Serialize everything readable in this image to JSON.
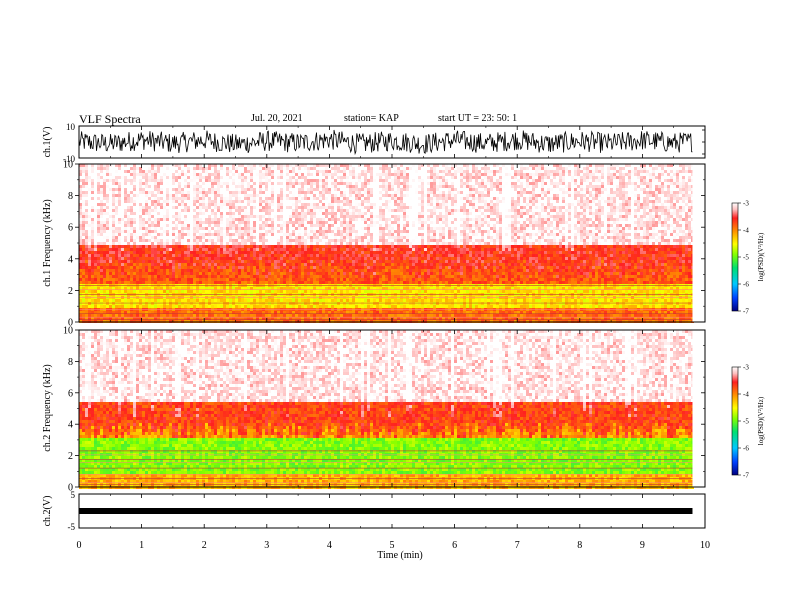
{
  "header": {
    "title": "VLF Spectra",
    "date": "Jul. 20, 2021",
    "station": "station= KAP",
    "start": "start UT = 23: 50: 1"
  },
  "chart_data": [
    {
      "type": "line",
      "panel": "waveform-ch1",
      "ylabel": "ch.1(V)",
      "ylim": [
        -10,
        10
      ],
      "ytick_labels": [
        "-10",
        "10"
      ],
      "x": [
        0.0,
        0.5,
        1.0,
        1.5,
        2.0,
        2.5,
        3.0,
        3.5,
        4.0,
        4.5,
        5.0,
        5.5,
        6.0,
        6.5,
        7.0,
        7.5,
        8.0,
        8.5,
        9.0,
        9.5,
        9.8
      ],
      "y": [
        1,
        -4,
        5,
        -3,
        4,
        -5,
        2,
        -2,
        5,
        -4,
        3,
        -4,
        4,
        -3,
        5,
        -4,
        2,
        -3,
        4,
        -2,
        1
      ],
      "y_range_per_sample": [
        -9,
        9
      ]
    },
    {
      "type": "heatmap",
      "panel": "spectrogram-ch1",
      "ylabel": "ch.1 Frequency (kHz)",
      "ylim": [
        0,
        10
      ],
      "yticks": [
        0,
        2,
        4,
        6,
        8,
        10
      ],
      "colorbar_label": "log(PSD)(V²/Hz)",
      "colorbar_range": [
        -7,
        -3
      ],
      "colorbar_ticks": [
        -3,
        -4,
        -5,
        -6,
        -7
      ],
      "band_edges_khz": [
        0,
        1.0,
        2.5,
        4.0,
        5.0,
        10
      ],
      "band_log_psd": [
        -3.9,
        -4.4,
        -3.8,
        -3.6,
        -3.1
      ]
    },
    {
      "type": "heatmap",
      "panel": "spectrogram-ch2",
      "ylabel": "ch.2 Frequency (kHz)",
      "ylim": [
        0,
        10
      ],
      "yticks": [
        0,
        2,
        4,
        6,
        8,
        10
      ],
      "colorbar_label": "log(PSD)(V²/Hz)",
      "colorbar_range": [
        -7,
        -3
      ],
      "colorbar_ticks": [
        -3,
        -4,
        -5,
        -6,
        -7
      ],
      "band_edges_khz": [
        0,
        1.0,
        3.3,
        4.2,
        5.5,
        10
      ],
      "band_log_psd": [
        -4.2,
        -4.9,
        -4.1,
        -3.7,
        -3.1
      ]
    },
    {
      "type": "line",
      "panel": "waveform-ch2",
      "ylabel": "ch.2(V)",
      "ylim": [
        -5,
        5
      ],
      "ytick_labels": [
        "-5",
        "5"
      ],
      "x": [
        0.0,
        9.8
      ],
      "y": [
        -0.5,
        -0.5
      ],
      "y_range_per_sample": [
        -1,
        0
      ]
    }
  ],
  "xaxis": {
    "xlabel": "Time (min)",
    "xlim": [
      0,
      10
    ],
    "xticks": [
      "0",
      "1",
      "2",
      "3",
      "4",
      "5",
      "6",
      "7",
      "8",
      "9",
      "10"
    ]
  },
  "colors": {
    "background": "#ffffff",
    "trace": "#000000",
    "colormap": [
      "#000080",
      "#0050ff",
      "#00c8ff",
      "#00e070",
      "#80ff00",
      "#ffff00",
      "#ff9000",
      "#ff2020",
      "#ffc0c0",
      "#ffffff"
    ]
  }
}
